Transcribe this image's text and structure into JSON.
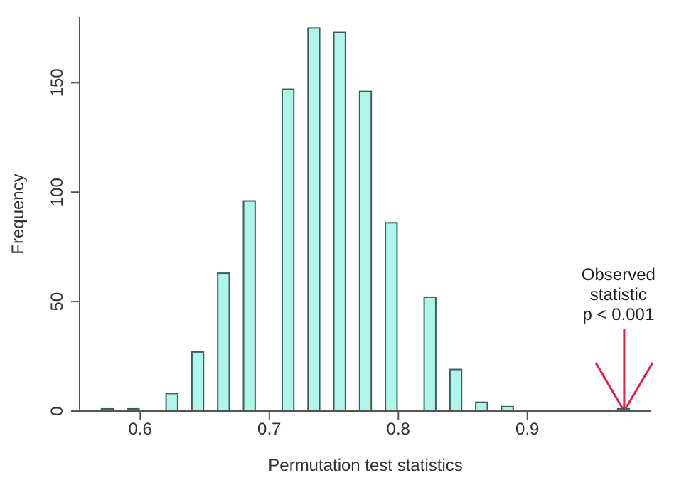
{
  "chart_data": {
    "type": "histogram",
    "xlabel": "Permutation test statistics",
    "ylabel": "Frequency",
    "bins": [
      0.57,
      0.58,
      0.59,
      0.6,
      0.61,
      0.62,
      0.63,
      0.64,
      0.65,
      0.66,
      0.67,
      0.68,
      0.69,
      0.7,
      0.71,
      0.72,
      0.73,
      0.74,
      0.75,
      0.76,
      0.77,
      0.78,
      0.79,
      0.8,
      0.81,
      0.82,
      0.83,
      0.84,
      0.85,
      0.86,
      0.87,
      0.88,
      0.89,
      0.9,
      0.91,
      0.92,
      0.93,
      0.94,
      0.95,
      0.96,
      0.97,
      0.98
    ],
    "values": [
      1,
      0,
      1,
      0,
      0,
      8,
      0,
      27,
      0,
      63,
      0,
      96,
      0,
      0,
      147,
      0,
      175,
      0,
      173,
      0,
      146,
      0,
      86,
      0,
      0,
      52,
      0,
      19,
      0,
      4,
      0,
      2,
      0,
      0,
      0,
      0,
      0,
      0,
      0,
      0,
      1
    ],
    "color": "#aef5ea",
    "xlim": [
      0.553,
      0.996
    ],
    "xticks": [
      0.6,
      0.7,
      0.8,
      0.9
    ],
    "ylim": [
      0,
      180
    ],
    "yticks": [
      0,
      50,
      100,
      150
    ],
    "grid": false,
    "annotations": [
      {
        "text": "Observed\nstatistic\np < 0.001",
        "x": 0.975,
        "y": 0
      }
    ]
  }
}
